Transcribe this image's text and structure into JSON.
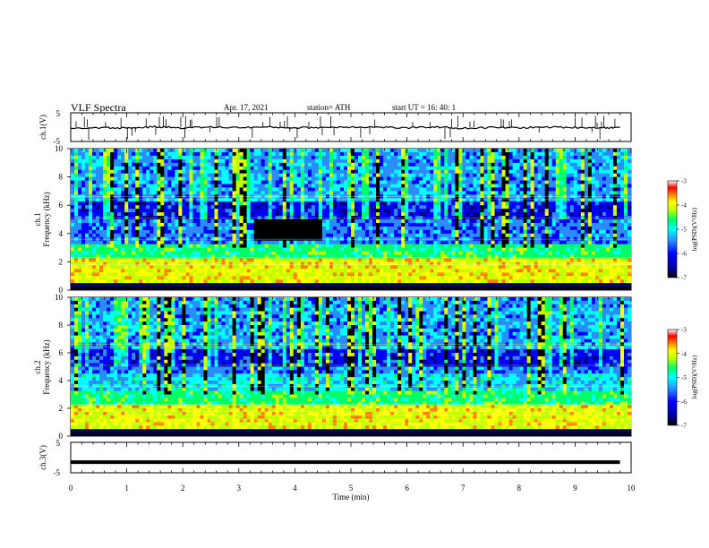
{
  "header": {
    "title": "VLF  Spectra",
    "date": "Apr. 17, 2021",
    "station": "station= ATH",
    "start": "start  UT  =    16: 40: 1"
  },
  "colors": {
    "palette": [
      "#000000",
      "#00007a",
      "#0000ff",
      "#2a8cff",
      "#00ffff",
      "#00ff66",
      "#bfff00",
      "#ffff00",
      "#ff8000",
      "#ff0000",
      "#ffffff"
    ]
  },
  "chart_data": [
    {
      "type": "line",
      "name": "ch1-waveform",
      "ylabel": "ch.1(V)",
      "yticks": [
        "5",
        "-5"
      ],
      "ylim": [
        -5,
        5
      ],
      "x": [
        0,
        0.5,
        1,
        1.5,
        2,
        2.5,
        3,
        3.5,
        4,
        4.5,
        5,
        5.5,
        6,
        6.5,
        7,
        7.5,
        8,
        8.5,
        9,
        9.5,
        9.8
      ],
      "y": [
        -0.4,
        -0.2,
        -0.3,
        0.1,
        -0.2,
        0.0,
        -0.1,
        0.0,
        -0.2,
        -0.1,
        0.1,
        0.0,
        -0.3,
        0.1,
        -0.4,
        -0.1,
        -0.2,
        0.0,
        -0.1,
        -0.2,
        -0.1
      ]
    },
    {
      "type": "heatmap",
      "name": "ch1-spectrogram",
      "ylabel": "ch.1\nFrequency  (kHz)",
      "yticks": [
        "0",
        "2",
        "4",
        "6",
        "8",
        "10"
      ],
      "ylim": [
        0,
        10
      ],
      "colorbar": {
        "label": "log(PSD)(V²/Hz)",
        "ticks": [
          "-3",
          "-4",
          "-5",
          "-6",
          "-7"
        ],
        "range": [
          -7,
          -3
        ]
      }
    },
    {
      "type": "heatmap",
      "name": "ch2-spectrogram",
      "ylabel": "ch.2\nFrequency  (kHz)",
      "yticks": [
        "0",
        "2",
        "4",
        "6",
        "8",
        "10"
      ],
      "ylim": [
        0,
        10
      ],
      "colorbar": {
        "label": "log(PSD)(V²/Hz)",
        "ticks": [
          "-3",
          "-4",
          "-5",
          "-6",
          "-7"
        ],
        "range": [
          -7,
          -3
        ]
      }
    },
    {
      "type": "line",
      "name": "ch3-waveform",
      "ylabel": "ch.3(V)",
      "yticks": [
        "5",
        "-5"
      ],
      "ylim": [
        -5,
        5
      ],
      "x": [
        0,
        9.8
      ],
      "y": [
        -1.5,
        -1.5
      ]
    }
  ],
  "xaxis": {
    "label": "Time  (min)",
    "ticks": [
      "0",
      "1",
      "2",
      "3",
      "4",
      "5",
      "6",
      "7",
      "8",
      "9",
      "10"
    ],
    "xlim": [
      0,
      10
    ]
  }
}
